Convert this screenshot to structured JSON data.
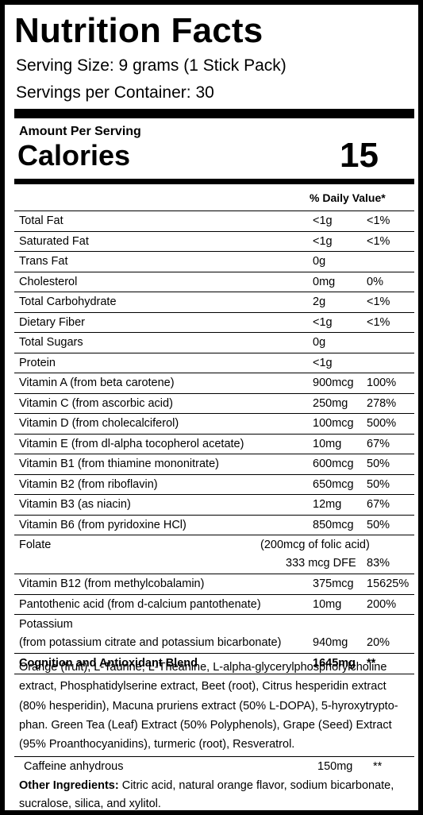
{
  "label": {
    "title": "Nutrition Facts",
    "serving_size": "Serving Size: 9 grams (1 Stick Pack)",
    "servings_per_container": "Servings per Container: 30",
    "amount_per_serving": "Amount Per Serving",
    "calories_label": "Calories",
    "calories_value": "15",
    "daily_value_header": "% Daily Value*"
  },
  "nutrients": [
    {
      "name": "Total Fat",
      "amount": "<1g",
      "dv": "<1%"
    },
    {
      "name": "Saturated Fat",
      "amount": "<1g",
      "dv": "<1%"
    },
    {
      "name": "Trans Fat",
      "amount": "0g",
      "dv": ""
    },
    {
      "name": "Cholesterol",
      "amount": "0mg",
      "dv": "0%"
    },
    {
      "name": "Total Carbohydrate",
      "amount": "2g",
      "dv": "<1%"
    },
    {
      "name": "Dietary Fiber",
      "amount": "<1g",
      "dv": "<1%"
    },
    {
      "name": "Total Sugars",
      "amount": "0g",
      "dv": ""
    },
    {
      "name": "Protein",
      "amount": "<1g",
      "dv": ""
    },
    {
      "name": "Vitamin A (from beta carotene)",
      "amount": "900mcg",
      "dv": "100%"
    },
    {
      "name": "Vitamin C (from ascorbic acid)",
      "amount": "250mg",
      "dv": "278%"
    },
    {
      "name": "Vitamin D (from cholecalciferol)",
      "amount": "100mcg",
      "dv": "500%"
    },
    {
      "name": "Vitamin E (from dl-alpha tocopherol acetate)",
      "amount": "10mg",
      "dv": "67%"
    },
    {
      "name": "Vitamin B1 (from thiamine mononitrate)",
      "amount": "600mcg",
      "dv": "50%"
    },
    {
      "name": "Vitamin B2 (from riboflavin)",
      "amount": "650mcg",
      "dv": "50%"
    },
    {
      "name": "Vitamin B3 (as niacin)",
      "amount": "12mg",
      "dv": "67%"
    },
    {
      "name": "Vitamin B6 (from pyridoxine HCl)",
      "amount": "850mcg",
      "dv": "50%"
    }
  ],
  "folate": {
    "name": "Folate",
    "sub": "(200mcg of folic acid)",
    "dfe": "333 mcg DFE",
    "dv": "83%"
  },
  "nutrients_after": [
    {
      "name": "Vitamin B12 (from methylcobalamin)",
      "amount": "375mcg",
      "dv": "15625%"
    },
    {
      "name": "Pantothenic acid (from d-calcium pantothenate)",
      "amount": "10mg",
      "dv": "200%"
    }
  ],
  "potassium": {
    "line1": "Potassium",
    "line2": "(from potassium citrate and potassium bicarbonate)",
    "amount": "940mg",
    "dv": "20%"
  },
  "blend": {
    "name": "Cognition and Antioxidant Blend",
    "amount": "1645mg",
    "dv": "**"
  },
  "blend_ingredients": "Orange (fruit), L-Taurine, L-Theanine, L-alpha-glycerylphosphorylcholine extract, Phosphatidylserine extract, Beet (root), Citrus hesperidin extract (80% hesperidin), Macuna pruriens extract (50% L-DOPA), 5-hyroxytrypto-phan. Green Tea (Leaf) Extract (50% Polyphenols), Grape (Seed) Extract (95% Proanthocyanidins), turmeric (root), Resveratrol.",
  "caffeine": {
    "name": "Caffeine anhydrous",
    "amount": "150mg",
    "dv": "**"
  },
  "other_ingredients": {
    "label": "Other Ingredients:",
    "text": " Citric acid, natural orange flavor, sodium bicarbonate, sucralose, silica, and xylitol."
  }
}
